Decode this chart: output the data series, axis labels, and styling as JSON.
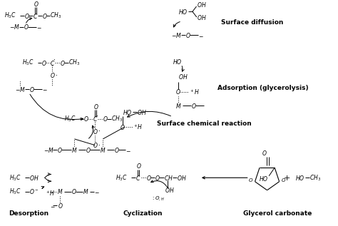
{
  "bg_color": "#ffffff",
  "figsize": [
    4.74,
    3.17
  ],
  "dpi": 100,
  "labels": {
    "surface_diffusion": "Surface diffusion",
    "adsorption": "Adsorption (glycerolysis)",
    "surface_chem": "Surface chemical reaction",
    "desorption": "Desorption",
    "cyclization": "Cyclization",
    "glycerol_carbonate": "Glycerol carbonate"
  }
}
